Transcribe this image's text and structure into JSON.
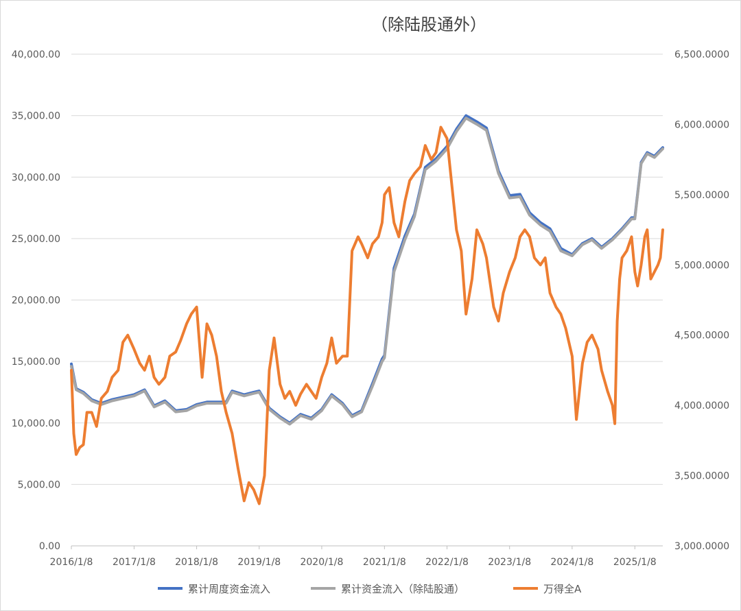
{
  "chart_data": {
    "type": "line",
    "title": "（除陆股通外）",
    "colors": {
      "weekly": "#4472C4",
      "cumulative": "#A5A5A5",
      "wind_a": "#ED7D31",
      "grid": "#D9D9D9",
      "axis": "#BFBFBF"
    },
    "x_tick_labels": [
      "2016/1/8",
      "2017/1/8",
      "2018/1/8",
      "2019/1/8",
      "2020/1/8",
      "2021/1/8",
      "2022/1/8",
      "2023/1/8",
      "2024/1/8",
      "2025/1/8"
    ],
    "x_range": [
      "2016/1/8",
      "2025/6/20"
    ],
    "y_left": {
      "min": 0,
      "max": 40000,
      "step": 5000,
      "tick_labels": [
        "0.00",
        "5,000.00",
        "10,000.00",
        "15,000.00",
        "20,000.00",
        "25,000.00",
        "30,000.00",
        "35,000.00",
        "40,000.00"
      ]
    },
    "y_right": {
      "min": 3000,
      "max": 6500,
      "step": 500,
      "tick_labels": [
        "3,000.0000",
        "3,500.0000",
        "4,000.0000",
        "4,500.0000",
        "5,000.0000",
        "5,500.0000",
        "6,000.0000",
        "6,500.0000"
      ]
    },
    "legend_position": "bottom",
    "series": [
      {
        "name": "累计周度资金流入",
        "axis": "left",
        "points": [
          [
            "2016/1/8",
            14800
          ],
          [
            "2016/2/5",
            12800
          ],
          [
            "2016/3/18",
            12500
          ],
          [
            "2016/5/6",
            11900
          ],
          [
            "2016/7/1",
            11600
          ],
          [
            "2016/9/2",
            11900
          ],
          [
            "2016/11/4",
            12100
          ],
          [
            "2017/1/8",
            12300
          ],
          [
            "2017/3/10",
            12700
          ],
          [
            "2017/5/5",
            11400
          ],
          [
            "2017/7/7",
            11800
          ],
          [
            "2017/9/8",
            11000
          ],
          [
            "2017/11/10",
            11100
          ],
          [
            "2018/1/8",
            11500
          ],
          [
            "2018/3/9",
            11700
          ],
          [
            "2018/5/4",
            11700
          ],
          [
            "2018/6/29",
            11700
          ],
          [
            "2018/8/3",
            12600
          ],
          [
            "2018/10/12",
            12300
          ],
          [
            "2018/12/7",
            12500
          ],
          [
            "2019/1/8",
            12600
          ],
          [
            "2019/3/8",
            11200
          ],
          [
            "2019/5/10",
            10500
          ],
          [
            "2019/7/5",
            10000
          ],
          [
            "2019/9/6",
            10700
          ],
          [
            "2019/11/8",
            10400
          ],
          [
            "2020/1/8",
            11100
          ],
          [
            "2020/3/6",
            12300
          ],
          [
            "2020/5/8",
            11600
          ],
          [
            "2020/7/3",
            10600
          ],
          [
            "2020/8/28",
            11000
          ],
          [
            "2020/10/30",
            13200
          ],
          [
            "2020/12/25",
            15200
          ],
          [
            "2021/1/8",
            15500
          ],
          [
            "2021/3/5",
            22600
          ],
          [
            "2021/5/7",
            25200
          ],
          [
            "2021/7/2",
            27000
          ],
          [
            "2021/9/3",
            30800
          ],
          [
            "2021/11/5",
            31500
          ],
          [
            "2022/1/8",
            32500
          ],
          [
            "2022/3/4",
            33900
          ],
          [
            "2022/4/29",
            35000
          ],
          [
            "2022/7/1",
            34500
          ],
          [
            "2022/8/26",
            34000
          ],
          [
            "2022/11/4",
            30500
          ],
          [
            "2023/1/8",
            28500
          ],
          [
            "2023/3/10",
            28600
          ],
          [
            "2023/5/5",
            27100
          ],
          [
            "2023/7/7",
            26300
          ],
          [
            "2023/9/1",
            25800
          ],
          [
            "2023/11/3",
            24200
          ],
          [
            "2024/1/8",
            23700
          ],
          [
            "2024/3/8",
            24600
          ],
          [
            "2024/5/3",
            25000
          ],
          [
            "2024/6/28",
            24300
          ],
          [
            "2024/8/30",
            25000
          ],
          [
            "2024/10/25",
            25800
          ],
          [
            "2024/12/20",
            26700
          ],
          [
            "2025/1/8",
            26700
          ],
          [
            "2025/2/14",
            31200
          ],
          [
            "2025/3/21",
            32000
          ],
          [
            "2025/5/2",
            31700
          ],
          [
            "2025/6/20",
            32400
          ]
        ]
      },
      {
        "name": "累计资金流入（除陆股通）",
        "axis": "left",
        "points": [
          [
            "2016/1/8",
            14600
          ],
          [
            "2016/2/5",
            12700
          ],
          [
            "2016/3/18",
            12400
          ],
          [
            "2016/5/6",
            11800
          ],
          [
            "2016/7/1",
            11500
          ],
          [
            "2016/9/2",
            11800
          ],
          [
            "2016/11/4",
            12000
          ],
          [
            "2017/1/8",
            12200
          ],
          [
            "2017/3/10",
            12600
          ],
          [
            "2017/5/5",
            11300
          ],
          [
            "2017/7/7",
            11700
          ],
          [
            "2017/9/8",
            10900
          ],
          [
            "2017/11/10",
            11000
          ],
          [
            "2018/1/8",
            11400
          ],
          [
            "2018/3/9",
            11600
          ],
          [
            "2018/5/4",
            11600
          ],
          [
            "2018/6/29",
            11600
          ],
          [
            "2018/8/3",
            12500
          ],
          [
            "2018/10/12",
            12200
          ],
          [
            "2018/12/7",
            12400
          ],
          [
            "2019/1/8",
            12500
          ],
          [
            "2019/3/8",
            11100
          ],
          [
            "2019/5/10",
            10400
          ],
          [
            "2019/7/5",
            9900
          ],
          [
            "2019/9/6",
            10600
          ],
          [
            "2019/11/8",
            10300
          ],
          [
            "2020/1/8",
            11000
          ],
          [
            "2020/3/6",
            12200
          ],
          [
            "2020/5/8",
            11500
          ],
          [
            "2020/7/3",
            10500
          ],
          [
            "2020/8/28",
            10900
          ],
          [
            "2020/10/30",
            13000
          ],
          [
            "2020/12/25",
            15000
          ],
          [
            "2021/1/8",
            15300
          ],
          [
            "2021/3/5",
            22300
          ],
          [
            "2021/5/7",
            24900
          ],
          [
            "2021/7/2",
            26800
          ],
          [
            "2021/9/3",
            30600
          ],
          [
            "2021/11/5",
            31300
          ],
          [
            "2022/1/8",
            32300
          ],
          [
            "2022/3/4",
            33700
          ],
          [
            "2022/4/29",
            34800
          ],
          [
            "2022/7/1",
            34300
          ],
          [
            "2022/8/26",
            33800
          ],
          [
            "2022/11/4",
            30300
          ],
          [
            "2023/1/8",
            28300
          ],
          [
            "2023/3/10",
            28400
          ],
          [
            "2023/5/5",
            26900
          ],
          [
            "2023/7/7",
            26100
          ],
          [
            "2023/9/1",
            25600
          ],
          [
            "2023/11/3",
            24000
          ],
          [
            "2024/1/8",
            23600
          ],
          [
            "2024/3/8",
            24500
          ],
          [
            "2024/5/3",
            24900
          ],
          [
            "2024/6/28",
            24200
          ],
          [
            "2024/8/30",
            24900
          ],
          [
            "2024/10/25",
            25700
          ],
          [
            "2024/12/20",
            26600
          ],
          [
            "2025/1/8",
            26600
          ],
          [
            "2025/2/14",
            31100
          ],
          [
            "2025/3/21",
            31900
          ],
          [
            "2025/5/2",
            31600
          ],
          [
            "2025/6/20",
            32300
          ]
        ]
      },
      {
        "name": "万得全A",
        "axis": "right",
        "points": [
          [
            "2016/1/8",
            4250
          ],
          [
            "2016/1/22",
            3800
          ],
          [
            "2016/2/5",
            3650
          ],
          [
            "2016/2/26",
            3700
          ],
          [
            "2016/3/18",
            3720
          ],
          [
            "2016/4/8",
            3950
          ],
          [
            "2016/5/6",
            3950
          ],
          [
            "2016/6/3",
            3850
          ],
          [
            "2016/7/1",
            4050
          ],
          [
            "2016/8/5",
            4100
          ],
          [
            "2016/9/2",
            4200
          ],
          [
            "2016/10/7",
            4250
          ],
          [
            "2016/11/4",
            4450
          ],
          [
            "2016/12/2",
            4500
          ],
          [
            "2017/1/8",
            4400
          ],
          [
            "2017/2/10",
            4300
          ],
          [
            "2017/3/10",
            4250
          ],
          [
            "2017/4/7",
            4350
          ],
          [
            "2017/5/5",
            4200
          ],
          [
            "2017/6/2",
            4150
          ],
          [
            "2017/7/7",
            4200
          ],
          [
            "2017/8/4",
            4350
          ],
          [
            "2017/9/8",
            4380
          ],
          [
            "2017/10/6",
            4460
          ],
          [
            "2017/11/10",
            4580
          ],
          [
            "2017/12/8",
            4650
          ],
          [
            "2018/1/8",
            4700
          ],
          [
            "2018/2/9",
            4200
          ],
          [
            "2018/3/9",
            4580
          ],
          [
            "2018/4/6",
            4500
          ],
          [
            "2018/5/4",
            4350
          ],
          [
            "2018/6/1",
            4100
          ],
          [
            "2018/6/29",
            3950
          ],
          [
            "2018/8/3",
            3800
          ],
          [
            "2018/9/7",
            3550
          ],
          [
            "2018/10/12",
            3320
          ],
          [
            "2018/11/9",
            3450
          ],
          [
            "2018/12/7",
            3400
          ],
          [
            "2019/1/8",
            3300
          ],
          [
            "2019/2/8",
            3500
          ],
          [
            "2019/3/8",
            4250
          ],
          [
            "2019/4/5",
            4480
          ],
          [
            "2019/5/10",
            4150
          ],
          [
            "2019/6/7",
            4050
          ],
          [
            "2019/7/5",
            4100
          ],
          [
            "2019/8/9",
            4000
          ],
          [
            "2019/9/6",
            4080
          ],
          [
            "2019/10/11",
            4150
          ],
          [
            "2019/11/8",
            4100
          ],
          [
            "2019/12/6",
            4050
          ],
          [
            "2020/1/8",
            4200
          ],
          [
            "2020/2/7",
            4300
          ],
          [
            "2020/3/6",
            4480
          ],
          [
            "2020/4/3",
            4300
          ],
          [
            "2020/5/8",
            4350
          ],
          [
            "2020/6/5",
            4350
          ],
          [
            "2020/7/3",
            5100
          ],
          [
            "2020/8/7",
            5200
          ],
          [
            "2020/8/28",
            5150
          ],
          [
            "2020/10/2",
            5050
          ],
          [
            "2020/10/30",
            5150
          ],
          [
            "2020/12/4",
            5200
          ],
          [
            "2020/12/25",
            5300
          ],
          [
            "2021/1/8",
            5500
          ],
          [
            "2021/2/5",
            5550
          ],
          [
            "2021/3/5",
            5300
          ],
          [
            "2021/4/2",
            5200
          ],
          [
            "2021/5/7",
            5450
          ],
          [
            "2021/6/4",
            5600
          ],
          [
            "2021/7/2",
            5650
          ],
          [
            "2021/8/6",
            5700
          ],
          [
            "2021/9/3",
            5850
          ],
          [
            "2021/10/8",
            5750
          ],
          [
            "2021/11/5",
            5800
          ],
          [
            "2021/12/3",
            5980
          ],
          [
            "2022/1/8",
            5900
          ],
          [
            "2022/2/11",
            5500
          ],
          [
            "2022/3/4",
            5250
          ],
          [
            "2022/4/1",
            5100
          ],
          [
            "2022/4/29",
            4650
          ],
          [
            "2022/6/3",
            4900
          ],
          [
            "2022/7/1",
            5250
          ],
          [
            "2022/8/5",
            5150
          ],
          [
            "2022/8/26",
            5050
          ],
          [
            "2022/10/7",
            4700
          ],
          [
            "2022/11/4",
            4600
          ],
          [
            "2022/12/2",
            4800
          ],
          [
            "2023/1/8",
            4950
          ],
          [
            "2023/2/10",
            5050
          ],
          [
            "2023/3/10",
            5200
          ],
          [
            "2023/4/7",
            5250
          ],
          [
            "2023/5/5",
            5200
          ],
          [
            "2023/6/2",
            5050
          ],
          [
            "2023/7/7",
            5000
          ],
          [
            "2023/8/4",
            5050
          ],
          [
            "2023/9/1",
            4800
          ],
          [
            "2023/10/6",
            4700
          ],
          [
            "2023/11/3",
            4650
          ],
          [
            "2023/12/1",
            4550
          ],
          [
            "2024/1/8",
            4350
          ],
          [
            "2024/2/2",
            3900
          ],
          [
            "2024/3/8",
            4300
          ],
          [
            "2024/4/5",
            4450
          ],
          [
            "2024/5/3",
            4500
          ],
          [
            "2024/6/7",
            4400
          ],
          [
            "2024/6/28",
            4250
          ],
          [
            "2024/8/2",
            4100
          ],
          [
            "2024/8/30",
            4000
          ],
          [
            "2024/9/13",
            3870
          ],
          [
            "2024/9/27",
            4600
          ],
          [
            "2024/10/11",
            4900
          ],
          [
            "2024/10/25",
            5050
          ],
          [
            "2024/11/22",
            5100
          ],
          [
            "2024/12/20",
            5200
          ],
          [
            "2025/1/8",
            4950
          ],
          [
            "2025/1/24",
            4850
          ],
          [
            "2025/2/14",
            5000
          ],
          [
            "2025/3/7",
            5200
          ],
          [
            "2025/3/21",
            5250
          ],
          [
            "2025/4/11",
            4900
          ],
          [
            "2025/5/2",
            4950
          ],
          [
            "2025/5/23",
            5000
          ],
          [
            "2025/6/6",
            5050
          ],
          [
            "2025/6/20",
            5250
          ]
        ]
      }
    ]
  }
}
